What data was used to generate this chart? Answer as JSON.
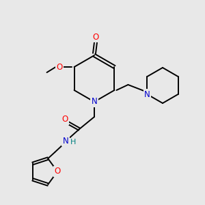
{
  "background_color": "#e8e8e8",
  "atom_colors": {
    "N": "#0000cc",
    "O": "#ff0000",
    "H": "#008080"
  },
  "bond_color": "#000000",
  "font_size_atom": 8.5,
  "fig_size": [
    3.0,
    3.0
  ],
  "dpi": 100
}
